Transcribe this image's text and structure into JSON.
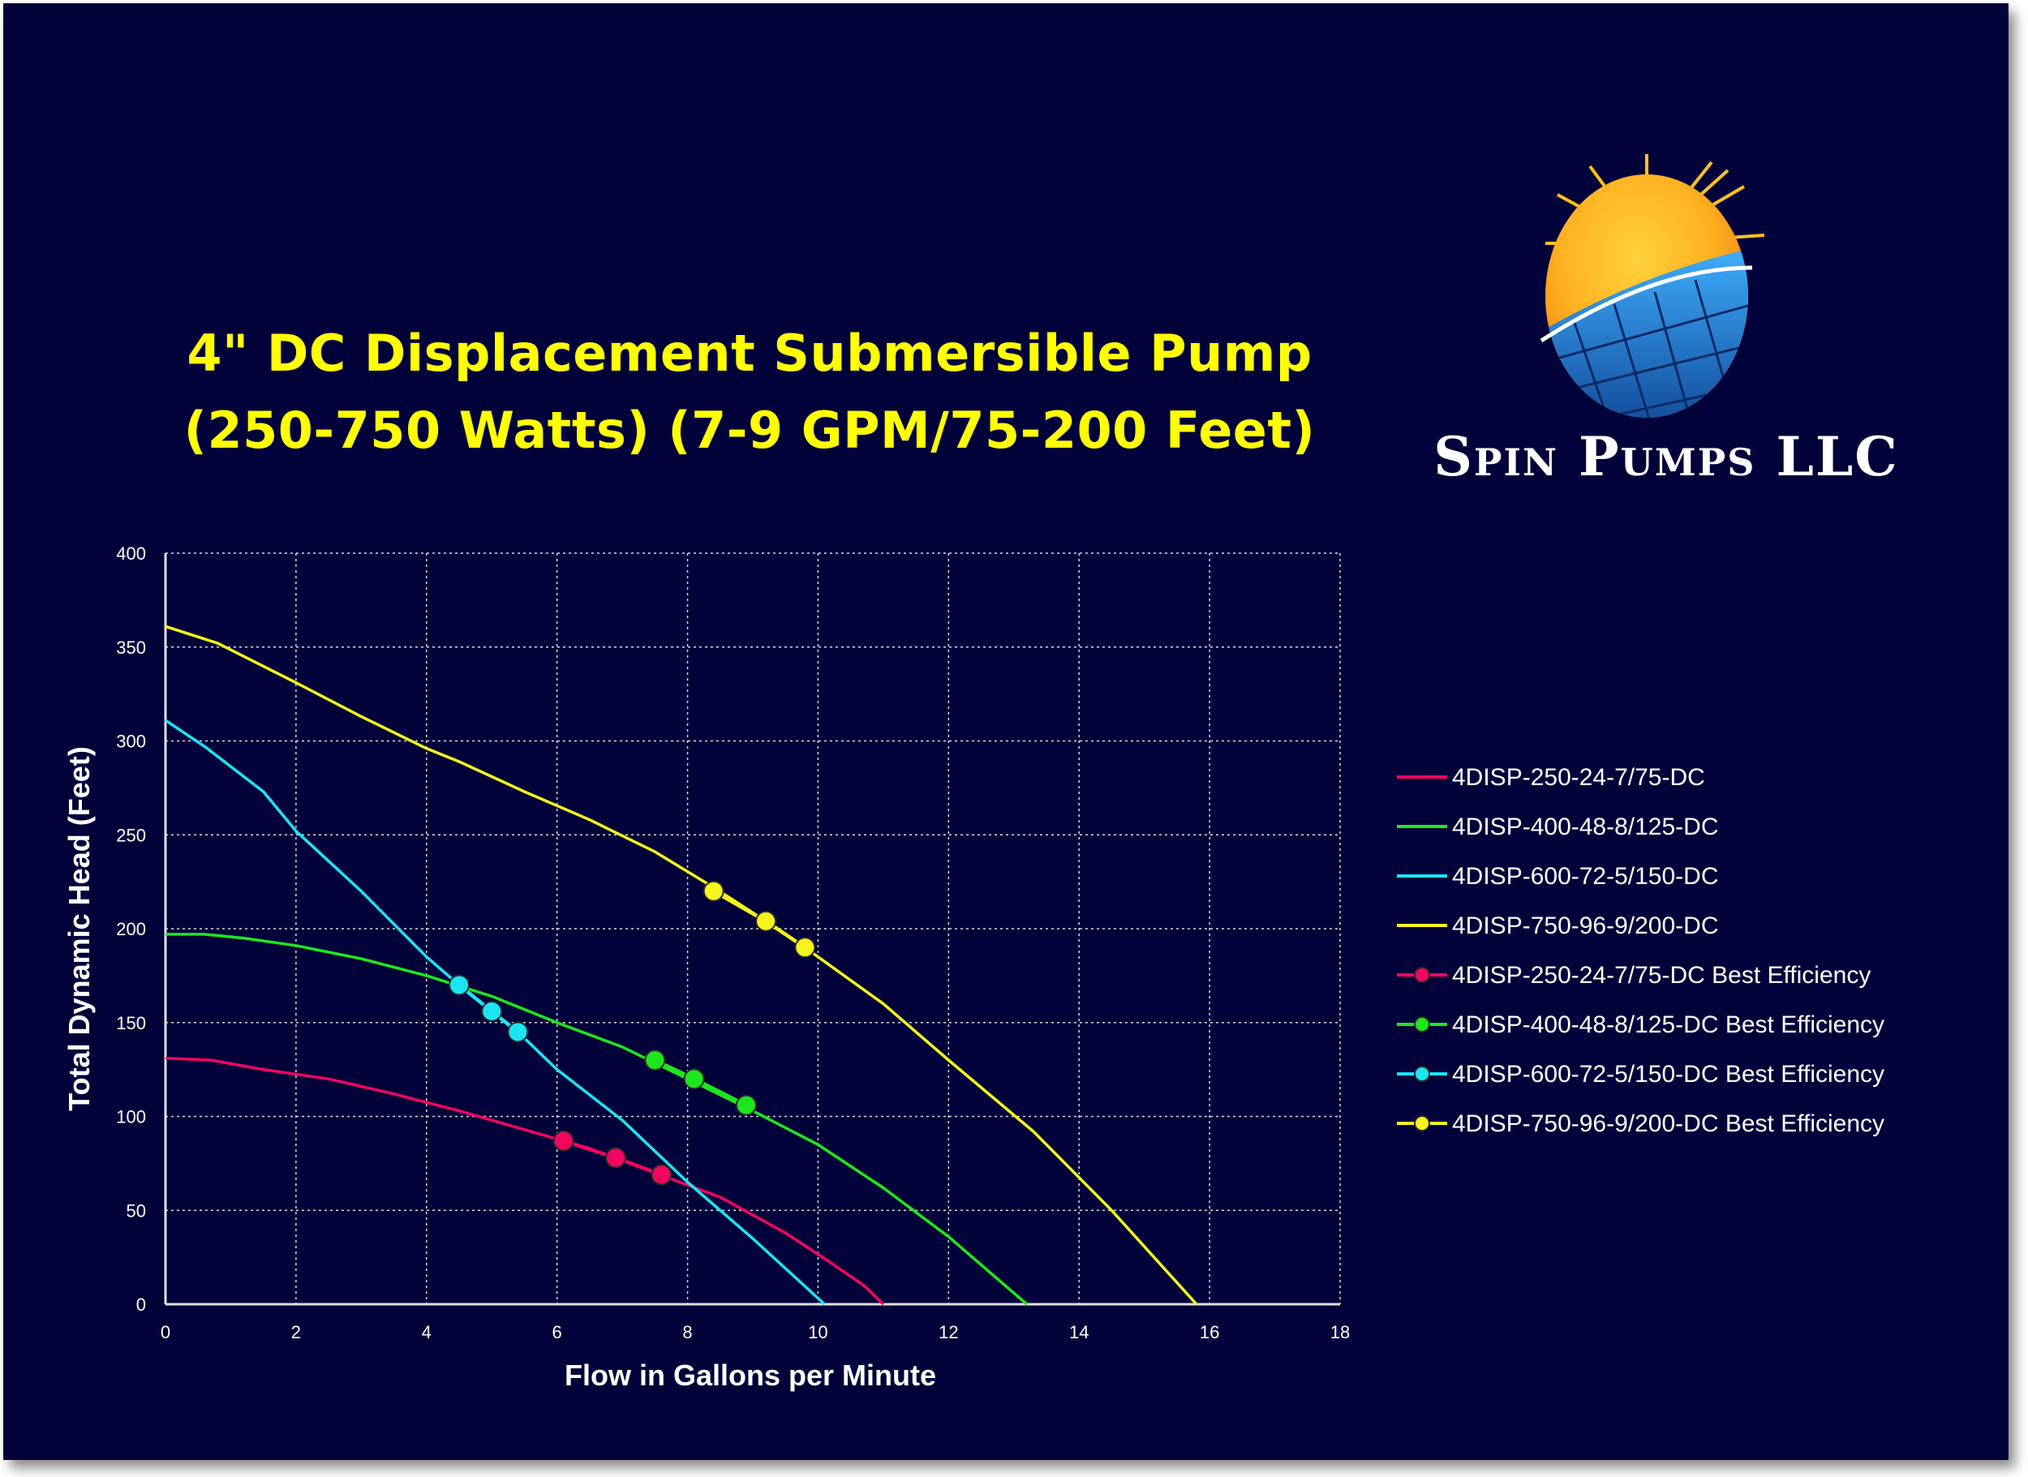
{
  "title_lines": [
    "4\" DC Displacement Submersible Pump",
    "(250-750 Watts) (7-9 GPM/75-200 Feet)"
  ],
  "brand": {
    "name": "Spin Pumps LLC",
    "logo_icon": "sun-solar-panel-logo"
  },
  "colors": {
    "background": "#02023a",
    "series_250": "#f2055f",
    "series_400": "#1ee61e",
    "series_600": "#19e6f2",
    "series_750": "#f5f51c",
    "grid": "#d9d9d9",
    "title": "#ffff00"
  },
  "chart_data": {
    "type": "line",
    "title": "4\" DC Displacement Submersible Pump (250-750 Watts) (7-9 GPM/75-200 Feet)",
    "xlabel": "Flow in Gallons per Minute",
    "ylabel": "Total Dynamic Head (Feet)",
    "xlim": [
      0,
      18
    ],
    "ylim": [
      0,
      400
    ],
    "xticks": [
      "0",
      "2",
      "4",
      "6",
      "8",
      "10",
      "12",
      "14",
      "16",
      "18"
    ],
    "yticks": [
      "0",
      "50",
      "100",
      "150",
      "200",
      "250",
      "300",
      "350",
      "400"
    ],
    "grid": "dotted",
    "legend_position": "right",
    "series": [
      {
        "name": "4DISP-250-24-7/75-DC",
        "color": "#f2055f",
        "kind": "line",
        "points": [
          [
            0,
            131
          ],
          [
            0.7,
            130
          ],
          [
            1.5,
            125
          ],
          [
            2.5,
            120
          ],
          [
            3.5,
            112
          ],
          [
            4.5,
            103
          ],
          [
            5.5,
            93
          ],
          [
            6.5,
            83
          ],
          [
            7.5,
            70
          ],
          [
            8.5,
            57
          ],
          [
            9.5,
            38
          ],
          [
            10.2,
            22
          ],
          [
            10.7,
            10
          ],
          [
            11,
            0
          ]
        ]
      },
      {
        "name": "4DISP-400-48-8/125-DC",
        "color": "#1ee61e",
        "kind": "line",
        "points": [
          [
            0,
            197
          ],
          [
            0.6,
            197
          ],
          [
            1.2,
            195
          ],
          [
            2,
            191
          ],
          [
            3,
            184
          ],
          [
            4,
            175
          ],
          [
            5,
            164
          ],
          [
            6,
            150
          ],
          [
            7,
            137
          ],
          [
            8,
            120
          ],
          [
            9,
            103
          ],
          [
            10,
            85
          ],
          [
            11,
            62
          ],
          [
            12,
            36
          ],
          [
            12.7,
            15
          ],
          [
            13.2,
            0
          ]
        ]
      },
      {
        "name": "4DISP-600-72-5/150-DC",
        "color": "#19e6f2",
        "kind": "line",
        "points": [
          [
            0,
            311
          ],
          [
            0.6,
            297
          ],
          [
            1.5,
            273
          ],
          [
            2,
            252
          ],
          [
            3,
            220
          ],
          [
            4,
            185
          ],
          [
            4.5,
            170
          ],
          [
            5,
            156
          ],
          [
            5.4,
            145
          ],
          [
            6,
            125
          ],
          [
            7,
            98
          ],
          [
            8,
            65
          ],
          [
            9,
            35
          ],
          [
            10.1,
            0
          ]
        ]
      },
      {
        "name": "4DISP-750-96-9/200-DC",
        "color": "#f5f51c",
        "kind": "line",
        "points": [
          [
            0,
            361
          ],
          [
            0.8,
            352
          ],
          [
            2,
            331
          ],
          [
            3,
            313
          ],
          [
            4,
            296
          ],
          [
            4.5,
            289
          ],
          [
            5.5,
            273
          ],
          [
            6.5,
            258
          ],
          [
            7.5,
            241
          ],
          [
            8.4,
            222
          ],
          [
            9.2,
            204
          ],
          [
            9.8,
            190
          ],
          [
            11,
            160
          ],
          [
            12,
            130
          ],
          [
            13.3,
            92
          ],
          [
            14.5,
            50
          ],
          [
            15.8,
            0
          ]
        ]
      },
      {
        "name": "4DISP-250-24-7/75-DC Best Efficiency",
        "color": "#f2055f",
        "kind": "markers",
        "points": [
          [
            6.1,
            87
          ],
          [
            6.9,
            78
          ],
          [
            7.6,
            69
          ]
        ]
      },
      {
        "name": "4DISP-400-48-8/125-DC Best Efficiency",
        "color": "#1ee61e",
        "kind": "markers",
        "points": [
          [
            7.5,
            130
          ],
          [
            8.1,
            120
          ],
          [
            8.9,
            106
          ]
        ]
      },
      {
        "name": "4DISP-600-72-5/150-DC Best Efficiency",
        "color": "#19e6f2",
        "kind": "markers",
        "points": [
          [
            4.5,
            170
          ],
          [
            5,
            156
          ],
          [
            5.4,
            145
          ]
        ]
      },
      {
        "name": "4DISP-750-96-9/200-DC Best Efficiency",
        "color": "#f5f51c",
        "kind": "markers",
        "points": [
          [
            8.4,
            220
          ],
          [
            9.2,
            204
          ],
          [
            9.8,
            190
          ]
        ]
      }
    ]
  }
}
